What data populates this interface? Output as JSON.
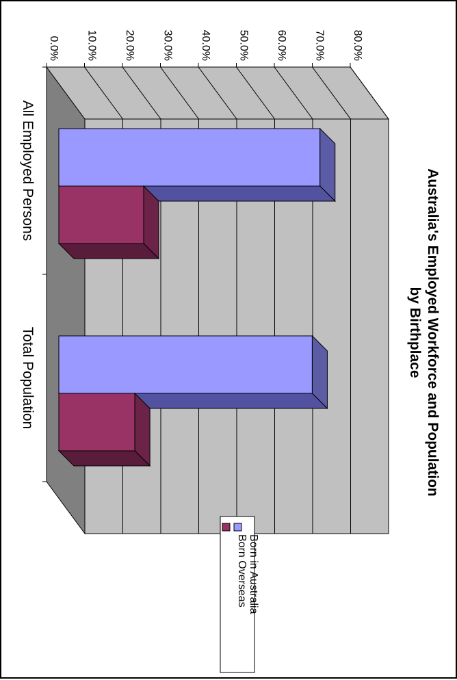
{
  "chart_data": {
    "type": "bar",
    "title": "Australia's Employed Workforce and Population by Birthplace",
    "title_lines": [
      "Australia's Employed Workforce and Population",
      "by Birthplace"
    ],
    "categories": [
      "All Employed Persons",
      "Total Population"
    ],
    "series": [
      {
        "name": "Born in Australia",
        "values": [
          74.2,
          72.0
        ]
      },
      {
        "name": "Born Overseas",
        "values": [
          24.1,
          21.6
        ]
      }
    ],
    "ylim": [
      0,
      80
    ],
    "y_ticks": [
      "0.0%",
      "10.0%",
      "20.0%",
      "30.0%",
      "40.0%",
      "50.0%",
      "60.0%",
      "70.0%",
      "80.0%"
    ],
    "grid": true,
    "legend_placement": "bottom",
    "orientation": "rotated 90 degrees clockwise",
    "style": "3d",
    "colors": {
      "series_face": [
        "#9999ff",
        "#993366"
      ],
      "series_side": [
        "#5c5ca6",
        "#6b2347"
      ],
      "series_top": [
        "#5252a0",
        "#5a1c3b"
      ],
      "plot_back": "#c0c0c0",
      "plot_floor": "#808080",
      "gridline": "#000000"
    }
  }
}
